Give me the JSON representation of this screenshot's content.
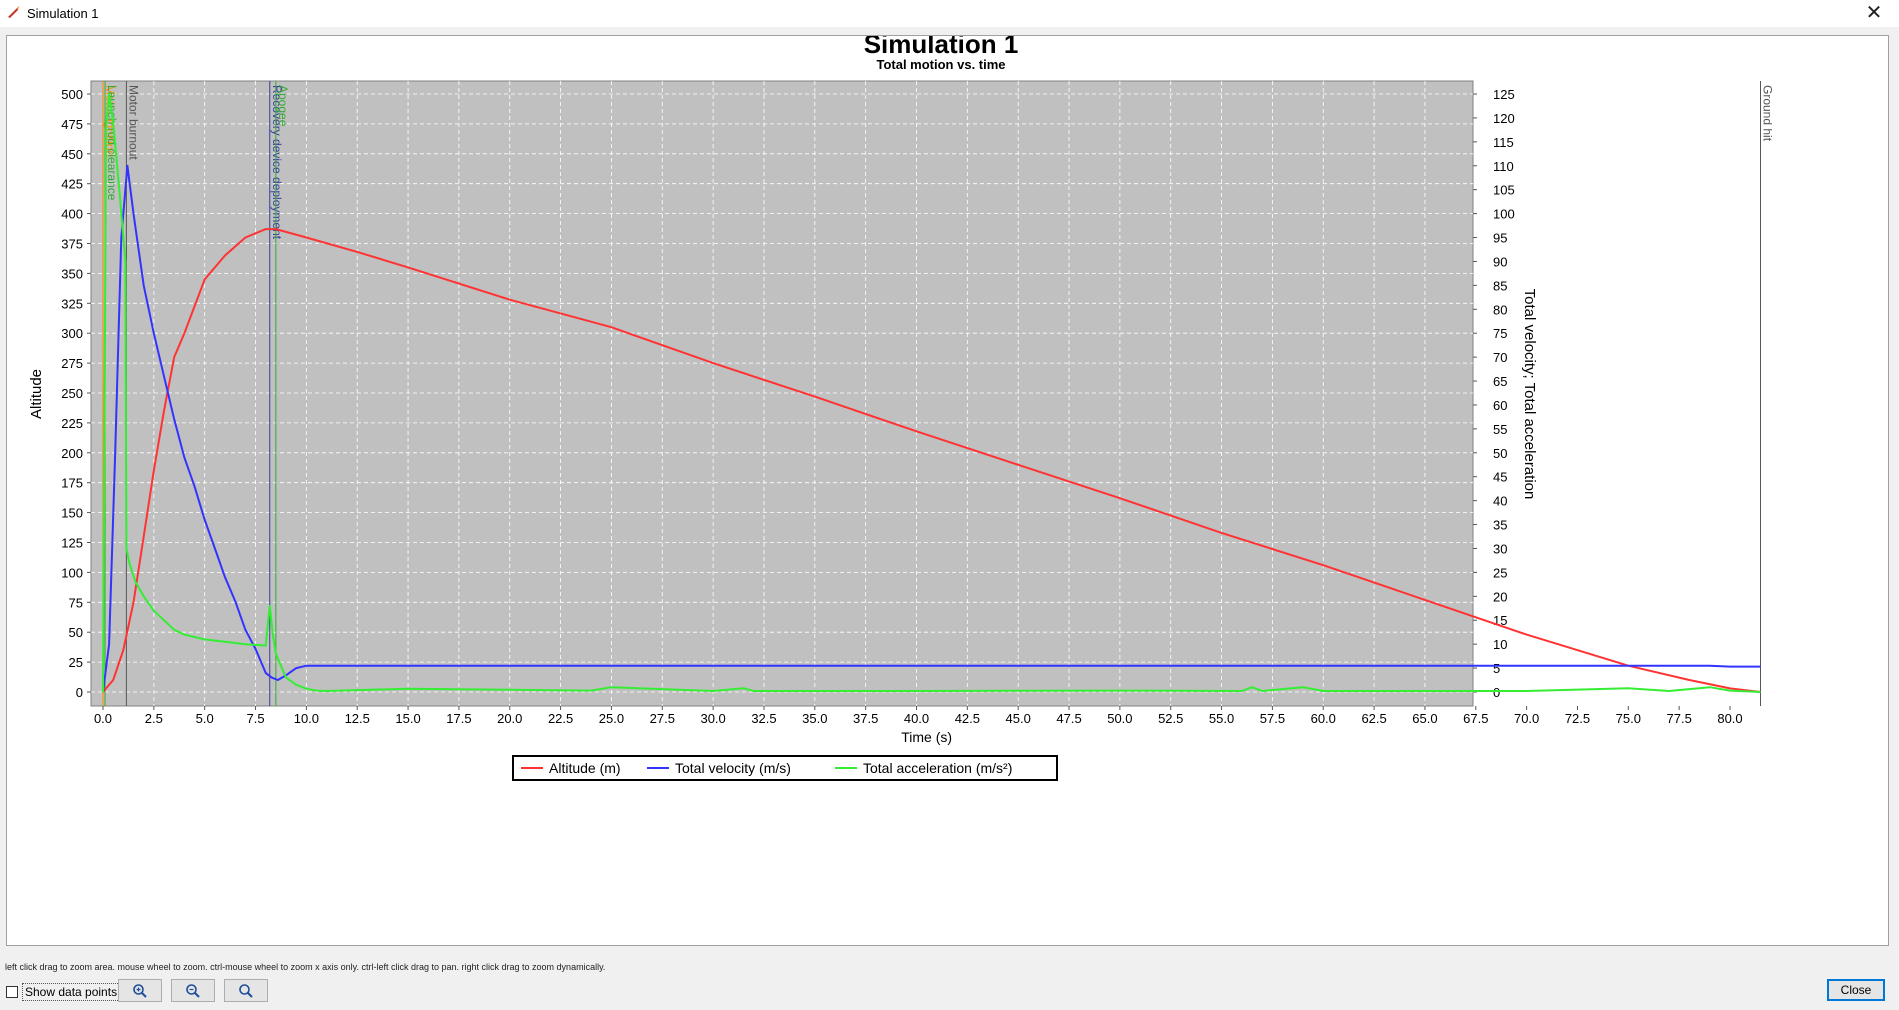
{
  "window": {
    "title": "Simulation 1",
    "close_glyph": "✕"
  },
  "chart_data": {
    "type": "line",
    "title": "Simulation 1",
    "subtitle": "Total motion vs. time",
    "xlabel": "Time (s)",
    "ylabel_left": "Altitude",
    "ylabel_right": "Total velocity; Total acceleration",
    "xlim": [
      0,
      81.7
    ],
    "ylim_left": [
      0,
      510
    ],
    "ylim_right": [
      0,
      127.5
    ],
    "x_ticks": [
      "0.0",
      "2.5",
      "5.0",
      "7.5",
      "10.0",
      "12.5",
      "15.0",
      "17.5",
      "20.0",
      "22.5",
      "25.0",
      "27.5",
      "30.0",
      "32.5",
      "35.0",
      "37.5",
      "40.0",
      "42.5",
      "45.0",
      "47.5",
      "50.0",
      "52.5",
      "55.0",
      "57.5",
      "60.0",
      "62.5",
      "65.0",
      "67.5",
      "70.0",
      "72.5",
      "75.0",
      "77.5",
      "80.0"
    ],
    "y_left_ticks": [
      "0",
      "25",
      "50",
      "75",
      "100",
      "125",
      "150",
      "175",
      "200",
      "225",
      "250",
      "275",
      "300",
      "325",
      "350",
      "375",
      "400",
      "425",
      "450",
      "475",
      "500"
    ],
    "y_right_ticks": [
      "0",
      "5",
      "10",
      "15",
      "20",
      "25",
      "30",
      "35",
      "40",
      "45",
      "50",
      "55",
      "60",
      "65",
      "70",
      "75",
      "80",
      "85",
      "90",
      "95",
      "100",
      "105",
      "110",
      "115",
      "120",
      "125"
    ],
    "grid": true,
    "legend_placement": "bottom-center",
    "series": [
      {
        "name": "Altitude (m)",
        "axis": "left",
        "color": "#ff3333",
        "x": [
          0,
          0.5,
          1.0,
          1.5,
          2.0,
          2.5,
          3.0,
          3.5,
          4.0,
          5.0,
          6.0,
          7.0,
          8.0,
          8.5,
          10,
          12.5,
          15,
          20,
          25,
          30,
          35,
          40,
          45,
          50,
          55,
          60,
          65,
          70,
          75,
          78,
          80,
          81.5
        ],
        "y": [
          0,
          10,
          35,
          75,
          130,
          185,
          235,
          280,
          300,
          345,
          365,
          380,
          387,
          387,
          380,
          368,
          355,
          328,
          305,
          275,
          247,
          218,
          190,
          162,
          133,
          106,
          77,
          48,
          22,
          10,
          3,
          0
        ]
      },
      {
        "name": "Total velocity (m/s)",
        "axis": "right",
        "color": "#3333ff",
        "x": [
          0,
          0.3,
          0.6,
          0.9,
          1.2,
          1.5,
          2.0,
          2.5,
          3.0,
          3.5,
          4.0,
          4.5,
          5.0,
          5.5,
          6.0,
          6.5,
          7.0,
          7.5,
          8.0,
          8.3,
          8.6,
          9.0,
          9.5,
          10,
          20,
          40,
          60,
          79,
          80,
          81.5
        ],
        "y": [
          0,
          10,
          50,
          95,
          110,
          100,
          85,
          75,
          66,
          57,
          49,
          43,
          36,
          30,
          24,
          19,
          13,
          9,
          4,
          3,
          2.5,
          3.5,
          5,
          5.5,
          5.5,
          5.5,
          5.5,
          5.5,
          5.3,
          5.3
        ]
      },
      {
        "name": "Total acceleration (m/s²)",
        "axis": "right",
        "color": "#33ee33",
        "x": [
          0,
          0.15,
          0.3,
          0.5,
          0.8,
          1.1,
          1.15,
          1.3,
          1.6,
          2.0,
          2.5,
          3.0,
          3.5,
          4.0,
          5.0,
          6.0,
          7.0,
          8.0,
          8.2,
          8.35,
          8.5,
          9.0,
          9.5,
          10,
          10.5,
          11,
          15,
          24,
          25,
          30,
          31.5,
          32,
          40,
          50,
          56,
          56.5,
          57,
          59,
          60,
          70,
          75,
          77,
          79,
          80,
          81.5
        ],
        "y": [
          0,
          118,
          125,
          119,
          105,
          90,
          30,
          27,
          23,
          20,
          17,
          15,
          13,
          12,
          11,
          10.5,
          10,
          9.7,
          18,
          12,
          8,
          3,
          1.5,
          0.7,
          0.3,
          0.2,
          0.7,
          0.3,
          1.0,
          0.2,
          0.8,
          0.2,
          0.2,
          0.3,
          0.2,
          1.0,
          0.2,
          1.0,
          0.2,
          0.2,
          0.8,
          0.2,
          1.0,
          0.3,
          0
        ]
      }
    ],
    "events": [
      {
        "label": "Motor ignition",
        "x": 0.0,
        "color": "#ff8c00"
      },
      {
        "label": "Launch rod clearance",
        "x": 0.1,
        "color": "#33aa33"
      },
      {
        "label": "Motor burnout",
        "x": 1.15,
        "color": "#555555"
      },
      {
        "label": "Recovery device deployment",
        "x": 8.2,
        "color": "#3a3aa0"
      },
      {
        "label": "Apogee",
        "x": 8.5,
        "color": "#33aa33"
      },
      {
        "label": "Ground hit",
        "x": 81.5,
        "color": "#555555"
      }
    ]
  },
  "status": {
    "hint": "left click drag to zoom area. mouse wheel to zoom. ctrl-mouse wheel to zoom x axis only. ctrl-left click drag to pan.  right click drag to zoom dynamically."
  },
  "controls": {
    "show_data_points_label": "Show data points",
    "zoom_in_icon": "zoom-in-icon",
    "zoom_out_icon": "zoom-out-icon",
    "zoom_fit_icon": "zoom-fit-icon",
    "close_label": "Close"
  }
}
